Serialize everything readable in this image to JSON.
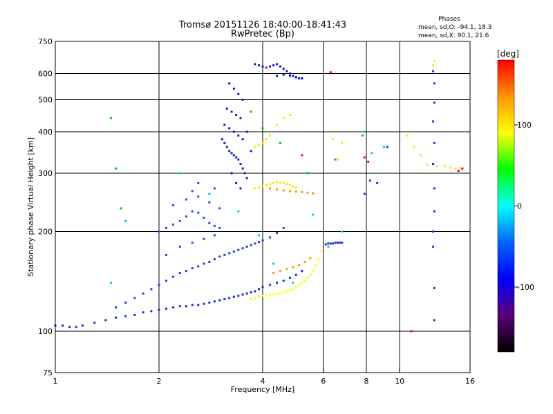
{
  "chart_data": {
    "type": "scatter",
    "title": "Tromsø 20151126 18:40:00-18:41:43",
    "subtitle": "RwPretec (Bp)",
    "xlabel": "Frequency [MHz]",
    "ylabel": "Stationary phase Virtual Height [km]",
    "x_scale": "log",
    "y_scale": "log",
    "xlim": [
      1,
      16
    ],
    "ylim": [
      75,
      750
    ],
    "x_ticks": [
      1,
      2,
      4,
      6,
      8,
      10,
      16
    ],
    "y_ticks": [
      75,
      100,
      200,
      300,
      400,
      500,
      600,
      750
    ],
    "x_gridlines": [
      2,
      4,
      6,
      8,
      10
    ],
    "y_gridlines": [
      100,
      200,
      300,
      400,
      500,
      600
    ],
    "grid": true,
    "phases_box": {
      "title": "Phases",
      "line_o": "mean, sd,O: -94.1, 18.3",
      "line_x": "mean, sd,X:  90.1, 21.6"
    },
    "colorbar": {
      "label": "[deg]",
      "range": [
        -180,
        180
      ],
      "ticks": [
        100,
        0,
        -100
      ],
      "colors": [
        "#000000",
        "#5a0078",
        "#0000ff",
        "#0064ff",
        "#00ffff",
        "#00ff00",
        "#ffff00",
        "#ff9600",
        "#ff0000"
      ]
    },
    "series": [
      {
        "name": "",
        "color": "#1428e6",
        "x": [
          1.0,
          1.05,
          1.1,
          1.15,
          1.2,
          1.3,
          1.4,
          1.5,
          1.6,
          1.7,
          1.8,
          1.9,
          2.0,
          2.1,
          2.2,
          2.3,
          2.4,
          2.5,
          2.6,
          2.7,
          2.8,
          2.9,
          3.0,
          3.1,
          3.2,
          3.3,
          3.4,
          3.5,
          3.6,
          3.7,
          3.8,
          3.9,
          4.0,
          4.2,
          4.4,
          4.6,
          4.8,
          5.0,
          5.2
        ],
        "y": [
          104,
          104,
          103,
          103,
          104,
          106,
          108,
          110,
          111,
          112,
          114,
          115,
          116,
          117,
          118,
          119,
          119,
          120,
          120,
          121,
          122,
          123,
          124,
          125,
          126,
          127,
          128,
          129,
          130,
          131,
          132,
          134,
          136,
          138,
          140,
          142,
          145,
          148,
          152
        ]
      },
      {
        "name": "",
        "color": "#1e3cdc",
        "x": [
          1.5,
          1.6,
          1.7,
          1.8,
          1.9,
          2.0,
          2.1,
          2.2,
          2.3,
          2.4,
          2.5,
          2.6,
          2.7,
          2.8,
          2.9,
          3.0,
          3.1,
          3.2,
          3.3,
          3.4,
          3.5,
          3.6,
          3.7,
          3.8,
          3.9,
          4.0,
          4.2,
          4.4,
          4.6
        ],
        "y": [
          118,
          122,
          126,
          130,
          134,
          138,
          142,
          146,
          150,
          152,
          155,
          157,
          160,
          162,
          165,
          168,
          170,
          172,
          174,
          176,
          178,
          180,
          182,
          184,
          186,
          188,
          192,
          198,
          205
        ]
      },
      {
        "name": "",
        "color": "#2846f0",
        "x": [
          2.0,
          2.1,
          2.2,
          2.3,
          2.4,
          2.5,
          2.6,
          2.7,
          2.8,
          2.9,
          3.0,
          2.2,
          2.4,
          2.6,
          2.8,
          3.0,
          2.3,
          2.5,
          2.7,
          2.9,
          2.1,
          2.5,
          2.9,
          2.6
        ],
        "y": [
          200,
          205,
          210,
          215,
          222,
          230,
          228,
          220,
          212,
          208,
          205,
          240,
          250,
          255,
          245,
          235,
          180,
          185,
          190,
          195,
          170,
          265,
          270,
          280
        ]
      },
      {
        "name": "",
        "color": "#141ec8",
        "x": [
          3.05,
          3.1,
          3.15,
          3.2,
          3.25,
          3.3,
          3.35,
          3.4,
          3.45,
          3.5,
          3.55,
          3.6,
          3.1,
          3.2,
          3.3,
          3.4,
          3.5,
          3.15,
          3.25,
          3.35,
          3.45,
          3.2,
          3.3,
          3.4,
          3.5,
          3.6,
          3.7,
          3.25,
          3.35,
          3.45
        ],
        "y": [
          380,
          370,
          360,
          350,
          345,
          340,
          335,
          330,
          320,
          310,
          300,
          290,
          420,
          410,
          400,
          390,
          380,
          470,
          460,
          450,
          440,
          560,
          540,
          520,
          500,
          400,
          350,
          300,
          280,
          270
        ]
      },
      {
        "name": "",
        "color": "#0a14d2",
        "x": [
          3.8,
          3.9,
          4.0,
          4.1,
          4.2,
          4.3,
          4.4,
          4.5,
          4.6,
          4.7,
          4.8,
          4.9,
          5.0,
          5.1,
          5.2,
          4.4,
          4.6,
          4.8,
          5.0,
          5.2
        ],
        "y": [
          640,
          635,
          630,
          625,
          630,
          635,
          640,
          630,
          620,
          610,
          600,
          590,
          585,
          580,
          580,
          590,
          595,
          590,
          585,
          580
        ]
      },
      {
        "name": "",
        "color": "#ffff00",
        "x": [
          3.7,
          3.8,
          3.9,
          4.0,
          4.1,
          4.2,
          4.3,
          4.4,
          4.5,
          4.6,
          4.7,
          4.8,
          4.9,
          5.0,
          5.1,
          5.2,
          5.3,
          5.4,
          5.5,
          5.6,
          5.7,
          5.8,
          5.9
        ],
        "y": [
          125,
          126,
          127,
          128,
          128,
          129,
          129,
          130,
          130,
          131,
          132,
          133,
          134,
          136,
          138,
          140,
          142,
          145,
          148,
          152,
          158,
          165,
          175
        ]
      },
      {
        "name": "",
        "color": "#ffe600",
        "x": [
          3.8,
          3.9,
          4.0,
          4.1,
          4.2,
          4.3,
          4.4,
          4.5,
          4.6,
          4.7,
          4.8,
          4.9,
          5.0,
          3.8,
          3.9,
          4.0,
          4.1,
          4.2,
          4.4,
          4.6,
          4.8
        ],
        "y": [
          270,
          272,
          274,
          276,
          278,
          280,
          282,
          281,
          280,
          278,
          276,
          274,
          272,
          360,
          365,
          370,
          380,
          390,
          420,
          440,
          450
        ]
      },
      {
        "name": "",
        "color": "#ff9600",
        "x": [
          4.2,
          4.4,
          4.6,
          4.8,
          5.0,
          5.2,
          5.4,
          5.6,
          4.3,
          4.5,
          4.7,
          4.9,
          5.1,
          5.3,
          5.5
        ],
        "y": [
          270,
          268,
          266,
          265,
          264,
          263,
          262,
          261,
          150,
          152,
          154,
          156,
          158,
          162,
          166
        ]
      },
      {
        "name": "",
        "color": "#00c8ff",
        "x": [
          1.45,
          1.6,
          2.3,
          2.8,
          3.4,
          3.9,
          4.3,
          4.9,
          5.6,
          6.2,
          6.8,
          7.9,
          8.3,
          9.0
        ],
        "y": [
          140,
          215,
          300,
          260,
          230,
          195,
          160,
          140,
          225,
          180,
          200,
          400,
          345,
          360
        ]
      },
      {
        "name": "",
        "color": "#00c800",
        "x": [
          1.45,
          1.5,
          1.55,
          4.0,
          4.5,
          5.4,
          6.5,
          7.8,
          3.7
        ],
        "y": [
          440,
          310,
          235,
          410,
          370,
          300,
          330,
          390,
          460
        ]
      },
      {
        "name": "",
        "color": "#ff0000",
        "x": [
          6.3,
          7.9,
          8.1,
          10.8,
          12.5,
          14.8,
          15.2,
          4.1,
          5.2
        ],
        "y": [
          605,
          335,
          325,
          100,
          320,
          305,
          310,
          625,
          340
        ]
      },
      {
        "name": "",
        "color": "#1e32d2",
        "x": [
          6.1,
          6.2,
          6.3,
          6.4,
          6.5,
          6.6,
          6.7,
          6.8,
          7.9,
          8.2,
          8.6,
          9.2,
          12.5,
          12.6,
          12.6,
          12.5,
          12.6,
          12.5,
          12.6,
          12.6,
          12.5,
          12.5,
          12.6,
          12.6
        ],
        "y": [
          183,
          184,
          184,
          184,
          185,
          185,
          185,
          185,
          260,
          285,
          280,
          360,
          610,
          560,
          490,
          430,
          370,
          320,
          270,
          230,
          200,
          180,
          135,
          108
        ]
      },
      {
        "name": "",
        "color": "#ffdc28",
        "x": [
          6.4,
          6.6,
          6.8,
          10.5,
          11.0,
          11.5,
          12.0,
          12.8,
          13.5,
          14.0,
          14.5,
          15.0,
          12.6,
          12.5
        ],
        "y": [
          380,
          330,
          370,
          390,
          360,
          340,
          318,
          315,
          315,
          312,
          310,
          310,
          655,
          635
        ]
      }
    ]
  }
}
